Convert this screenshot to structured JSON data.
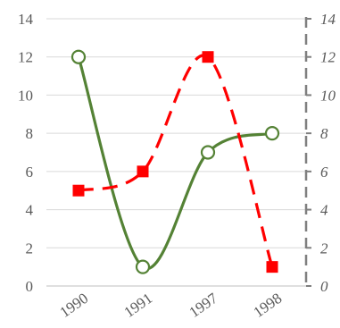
{
  "chart_data": {
    "type": "line",
    "categories": [
      "1990",
      "1991",
      "1997",
      "1998"
    ],
    "series": [
      {
        "values": [
          12,
          1,
          7,
          8
        ],
        "color": "#548235",
        "line_style": "solid",
        "marker": "hollow-circle",
        "axis": "left"
      },
      {
        "values": [
          5,
          6,
          12,
          1
        ],
        "color": "#ff0000",
        "line_style": "dashed",
        "marker": "filled-square",
        "axis": "right"
      }
    ],
    "ylim": [
      0,
      14
    ],
    "y_ticks": [
      0,
      2,
      4,
      6,
      8,
      10,
      12,
      14
    ],
    "y_tick_labels": [
      "0",
      "2",
      "4",
      "6",
      "8",
      "10",
      "12",
      "14"
    ],
    "y2lim": [
      0,
      14
    ],
    "y2_ticks": [
      0,
      2,
      4,
      6,
      8,
      10,
      12,
      14
    ],
    "y2_tick_labels": [
      "0",
      "2",
      "4",
      "6",
      "8",
      "10",
      "12",
      "14"
    ],
    "grid": true,
    "legend": "none",
    "title": "",
    "xlabel": "",
    "ylabel": ""
  }
}
